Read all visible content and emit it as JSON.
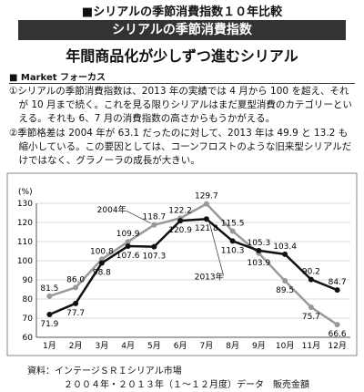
{
  "header": {
    "title": "■シリアルの季節消費指数１０年比較",
    "banner": "シリアルの季節消費指数",
    "subtitle": "年間商品化が少しずつ進むシリアル",
    "section": "■ Market フォーカス"
  },
  "paragraphs": [
    "①シリアルの季節消費指数は、2013 年の実績では 4 月から 100 を超え、それが 10 月まで続く。これを見る限りシリアルはまだ夏型消費のカテゴリーといえる。それも 6、7 月の消費指数の高さからもうかがえる。",
    "②季節格差は 2004 年が 63.1 だったのに対して、2013 年は 49.9 と 13.2 も縮小している。この要因としては、コーンフロストのような旧来型シリアルだけではなく、グラノーラの成長が大きい。"
  ],
  "chart_data": {
    "type": "line",
    "y_label": "(%)",
    "categories": [
      "1月",
      "2月",
      "3月",
      "4月",
      "5月",
      "6月",
      "7月",
      "8月",
      "9月",
      "10月",
      "11月",
      "12月"
    ],
    "series": [
      {
        "name": "2004年",
        "color": "#999999",
        "values": [
          81.5,
          86,
          100.8,
          109.9,
          118.7,
          122.2,
          129.7,
          115.5,
          103.9,
          89.5,
          75.7,
          66.6
        ],
        "value_labels": [
          "81.5",
          "86.0",
          "100.8",
          "109.9",
          "118.7",
          "122.2",
          "129.7",
          "115.5",
          "103.9",
          "89.5",
          "75.7",
          "66.6"
        ]
      },
      {
        "name": "2013年",
        "color": "#111111",
        "values": [
          71.9,
          77.7,
          98.8,
          107.6,
          107.3,
          120.9,
          121.8,
          110.3,
          105.3,
          103.4,
          90.2,
          84.7
        ],
        "value_labels": [
          "71.9",
          "77.7",
          "98.8",
          "107.6",
          "107.3",
          "120.9",
          "121.8",
          "110.3",
          "105.3",
          "103.4",
          "90.2",
          "84.7"
        ]
      }
    ],
    "ylim": [
      60,
      130
    ],
    "yticks": [
      60,
      70,
      80,
      90,
      100,
      110,
      120,
      130
    ],
    "grid": true
  },
  "footer": {
    "source": "資料：インテージＳＲＩシリアル市場",
    "note": "２００４年・２０１３年（１～１２月度）データ　販売金額"
  }
}
